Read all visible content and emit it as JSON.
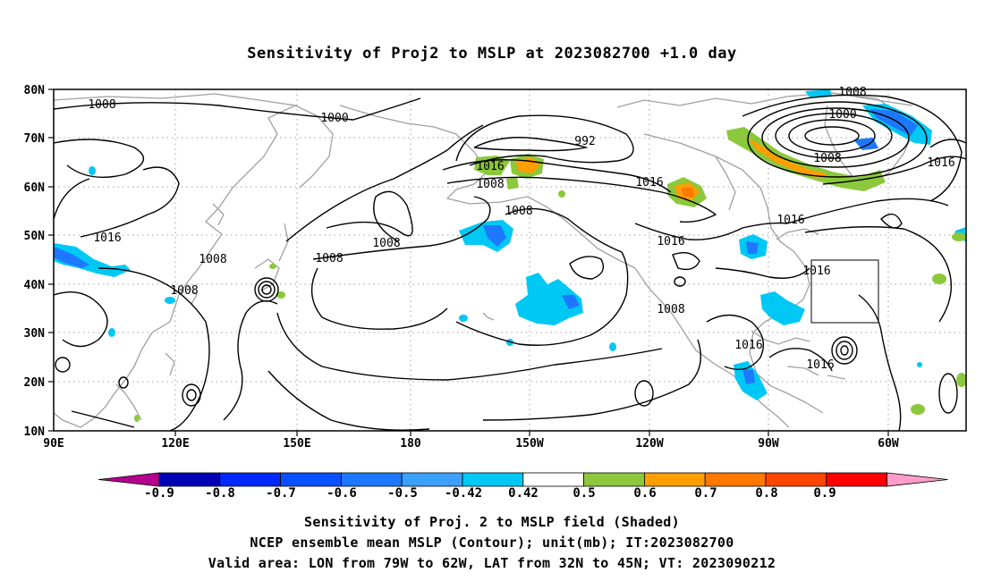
{
  "title": "Sensitivity of Proj2 to MSLP at 2023082700 +1.0 day",
  "lat_labels": [
    "80N",
    "70N",
    "60N",
    "50N",
    "40N",
    "30N",
    "20N",
    "10N"
  ],
  "lon_labels": [
    "90E",
    "120E",
    "150E",
    "180",
    "150W",
    "120W",
    "90W",
    "60W"
  ],
  "contour_labels": [
    "1008",
    "1008",
    "1000",
    "1000",
    "992",
    "1008",
    "1016",
    "1016",
    "1008",
    "1016",
    "1008",
    "1016",
    "1016",
    "1008",
    "1016",
    "1008",
    "1008",
    "1016",
    "1008",
    "1008",
    "1016",
    "1016"
  ],
  "colorbar": {
    "labels": [
      "-0.9",
      "-0.8",
      "-0.7",
      "-0.6",
      "-0.5",
      "-0.42",
      "0.42",
      "0.5",
      "0.6",
      "0.7",
      "0.8",
      "0.9"
    ],
    "colors": [
      "#b4008c",
      "#0000b4",
      "#0028ff",
      "#0a50ff",
      "#1e78ff",
      "#3ca0ff",
      "#00c8f5",
      "#ffffff",
      "#8cc83c",
      "#ff9e00",
      "#ff7800",
      "#ff4600",
      "#ff0000",
      "#ff9ec8"
    ]
  },
  "valid_box": {
    "lon_from": -79,
    "lon_to": -62,
    "lat_from": 32,
    "lat_to": 45
  },
  "captions": [
    "Sensitivity of Proj. 2 to MSLP field (Shaded)",
    "NCEP ensemble mean MSLP (Contour); unit(mb); IT:2023082700",
    "Valid area: LON from 79W to 62W, LAT from 32N to 45N; VT: 2023090212"
  ],
  "colors": {
    "coast": "#a0a0a0",
    "contour": "#000000",
    "grid": "#a0a0a0"
  }
}
